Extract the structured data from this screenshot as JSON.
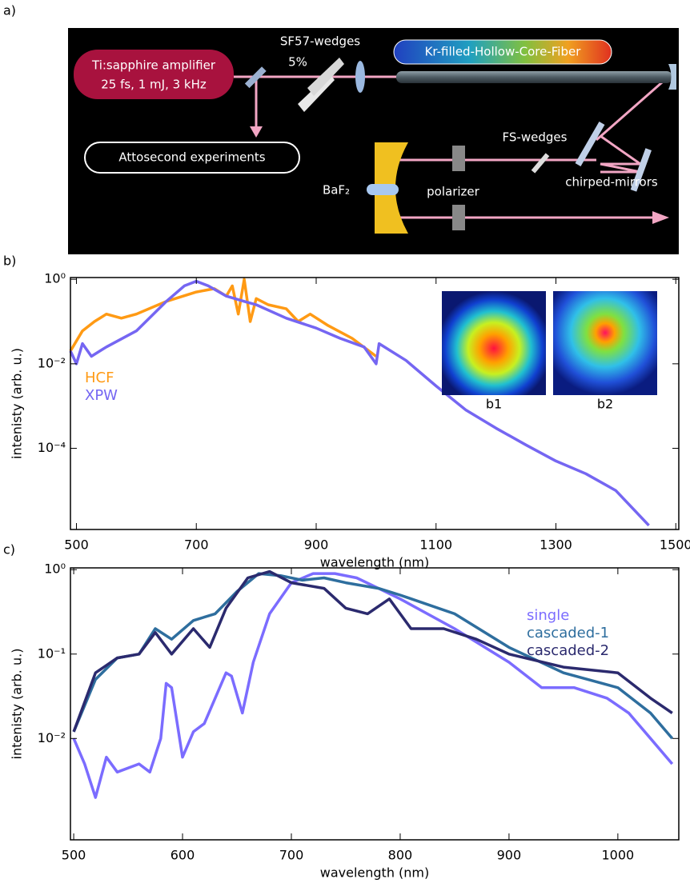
{
  "panel_labels": [
    "a)",
    "b)",
    "c)"
  ],
  "diagram": {
    "amplifier": [
      "Ti:sapphire amplifier",
      "25 fs, 1 mJ, 3 kHz"
    ],
    "sf57": "SF57-wedges",
    "fraction": "5%",
    "fiber": "Kr-filled-Hollow-Core-Fiber",
    "experiments": "Attosecond experiments",
    "fs_wedges": "FS-wedges",
    "mirrors": "chirped-mirrors",
    "polarizer": "polarizer",
    "baf2": "BaF₂"
  },
  "chart_data": [
    {
      "type": "line",
      "ylog": true,
      "xlabel": "wavelength (nm)",
      "ylabel": "intenisty (arb. u.)",
      "xlim": [
        490,
        1505
      ],
      "xticks": [
        500,
        700,
        900,
        1100,
        1300,
        1500
      ],
      "ylim": [
        1.2e-06,
        1.1
      ],
      "yticks": [
        {
          "value": 1,
          "label": "10⁰"
        },
        {
          "value": 0.01,
          "label": "10⁻²"
        },
        {
          "value": 0.0001,
          "label": "10⁻⁴"
        }
      ],
      "legend": "left",
      "annotations": [
        "b1",
        "b2"
      ],
      "series": [
        {
          "name": "HCF",
          "color": "#ff9a14",
          "x": [
            490,
            510,
            530,
            550,
            575,
            600,
            650,
            700,
            730,
            750,
            760,
            770,
            780,
            790,
            800,
            820,
            850,
            870,
            890,
            920,
            960,
            1000
          ],
          "values": [
            0.02,
            0.06,
            0.1,
            0.15,
            0.12,
            0.15,
            0.3,
            0.5,
            0.6,
            0.4,
            0.7,
            0.15,
            1.0,
            0.1,
            0.35,
            0.25,
            0.2,
            0.1,
            0.15,
            0.08,
            0.04,
            0.015
          ]
        },
        {
          "name": "XPW",
          "color": "#7566f2",
          "x": [
            490,
            500,
            510,
            525,
            550,
            600,
            650,
            680,
            700,
            720,
            750,
            780,
            800,
            850,
            900,
            940,
            980,
            1000,
            1005,
            1050,
            1100,
            1150,
            1200,
            1250,
            1300,
            1350,
            1400,
            1455
          ],
          "values": [
            0.02,
            0.01,
            0.03,
            0.015,
            0.025,
            0.06,
            0.3,
            0.7,
            0.9,
            0.7,
            0.4,
            0.3,
            0.25,
            0.12,
            0.07,
            0.04,
            0.025,
            0.01,
            0.03,
            0.012,
            0.003,
            0.0008,
            0.0003,
            0.00012,
            5e-05,
            2.5e-05,
            1e-05,
            1.5e-06
          ]
        }
      ]
    },
    {
      "type": "line",
      "ylog": true,
      "xlabel": "wavelength (nm)",
      "ylabel": "intenisty (arb. u.)",
      "xlim": [
        497,
        1056
      ],
      "xticks": [
        500,
        600,
        700,
        800,
        900,
        1000
      ],
      "ylim": [
        0.00063,
        1.05
      ],
      "yticks": [
        {
          "value": 1,
          "label": "10⁰"
        },
        {
          "value": 0.1,
          "label": "10⁻¹"
        },
        {
          "value": 0.01,
          "label": "10⁻²"
        }
      ],
      "legend": "upper right",
      "series": [
        {
          "name": "single",
          "color": "#7b6cff",
          "x": [
            500,
            510,
            520,
            530,
            540,
            560,
            570,
            580,
            585,
            590,
            600,
            610,
            620,
            630,
            640,
            645,
            655,
            665,
            680,
            700,
            720,
            740,
            760,
            780,
            800,
            850,
            900,
            930,
            960,
            990,
            1010,
            1030,
            1050
          ],
          "values": [
            0.01,
            0.005,
            0.002,
            0.006,
            0.004,
            0.005,
            0.004,
            0.01,
            0.045,
            0.04,
            0.006,
            0.012,
            0.015,
            0.03,
            0.06,
            0.055,
            0.02,
            0.08,
            0.3,
            0.7,
            0.9,
            0.9,
            0.8,
            0.6,
            0.45,
            0.2,
            0.08,
            0.04,
            0.04,
            0.03,
            0.02,
            0.01,
            0.005
          ]
        },
        {
          "name": "cascaded-1",
          "color": "#2e6e9e",
          "x": [
            500,
            520,
            540,
            560,
            575,
            590,
            610,
            630,
            650,
            670,
            690,
            710,
            730,
            750,
            780,
            800,
            850,
            900,
            950,
            1000,
            1030,
            1050
          ],
          "values": [
            0.012,
            0.05,
            0.09,
            0.1,
            0.2,
            0.15,
            0.25,
            0.3,
            0.55,
            0.9,
            0.85,
            0.75,
            0.8,
            0.7,
            0.6,
            0.5,
            0.3,
            0.12,
            0.06,
            0.04,
            0.02,
            0.01
          ]
        },
        {
          "name": "cascaded-2",
          "color": "#2b2a6e",
          "x": [
            500,
            520,
            540,
            560,
            575,
            590,
            610,
            625,
            640,
            660,
            680,
            700,
            730,
            750,
            770,
            790,
            810,
            840,
            870,
            900,
            950,
            1000,
            1030,
            1050
          ],
          "values": [
            0.012,
            0.06,
            0.09,
            0.1,
            0.18,
            0.1,
            0.2,
            0.12,
            0.35,
            0.8,
            0.95,
            0.7,
            0.6,
            0.35,
            0.3,
            0.45,
            0.2,
            0.2,
            0.15,
            0.1,
            0.07,
            0.06,
            0.03,
            0.02
          ]
        }
      ]
    }
  ]
}
